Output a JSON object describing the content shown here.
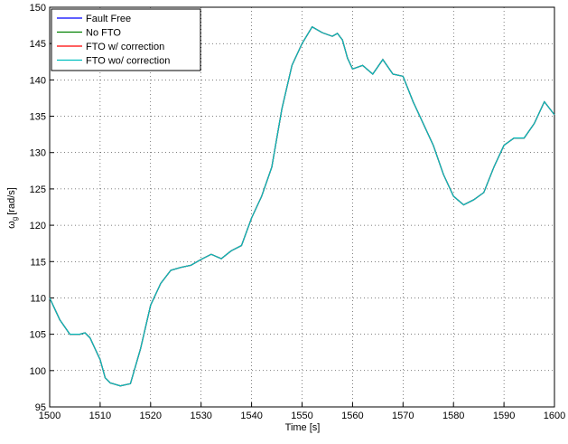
{
  "chart_data": {
    "type": "line",
    "xlabel": "Time [s]",
    "ylabel": {
      "symbol": "ω",
      "subscript": "g",
      "unit": "[rad/s]"
    },
    "x": [
      1500,
      1502,
      1504,
      1506,
      1507,
      1508,
      1510,
      1511,
      1512,
      1514,
      1516,
      1518,
      1520,
      1522,
      1524,
      1526,
      1528,
      1530,
      1532,
      1534,
      1536,
      1538,
      1540,
      1542,
      1544,
      1546,
      1548,
      1550,
      1552,
      1554,
      1556,
      1557,
      1558,
      1559,
      1560,
      1562,
      1564,
      1566,
      1568,
      1570,
      1572,
      1574,
      1576,
      1578,
      1580,
      1582,
      1584,
      1586,
      1588,
      1590,
      1592,
      1594,
      1596,
      1598,
      1600
    ],
    "series": [
      {
        "name": "Fault Free",
        "color": "#0000ff",
        "values": [
          110,
          107,
          105,
          105,
          105.2,
          104.5,
          101.5,
          99,
          98.3,
          97.9,
          98.2,
          103,
          109,
          112,
          113.8,
          114.2,
          114.5,
          115.3,
          116,
          115.4,
          116.5,
          117.2,
          121,
          124,
          128,
          136,
          142,
          145,
          147.3,
          146.5,
          146,
          146.4,
          145.5,
          143,
          141.5,
          142,
          140.8,
          142.8,
          140.8,
          140.5,
          137,
          134,
          131,
          127,
          124,
          122.8,
          123.5,
          124.5,
          128,
          131,
          132,
          132,
          134,
          137,
          135.2
        ]
      },
      {
        "name": "No FTO",
        "color": "#008000",
        "values": [
          110,
          107,
          105,
          105,
          105.2,
          104.5,
          101.5,
          99,
          98.3,
          97.9,
          98.2,
          103,
          109,
          112,
          113.8,
          114.2,
          114.5,
          115.3,
          116,
          115.4,
          116.5,
          117.2,
          121,
          124,
          128,
          136,
          142,
          145,
          147.3,
          146.5,
          146,
          146.4,
          145.5,
          143,
          141.5,
          142,
          140.8,
          142.8,
          140.8,
          140.5,
          137,
          134,
          131,
          127,
          124,
          122.8,
          123.5,
          124.5,
          128,
          131,
          132,
          132,
          134,
          137,
          135.2
        ]
      },
      {
        "name": "FTO w/ correction",
        "color": "#ff0000",
        "values": [
          110,
          107,
          105,
          105,
          105.2,
          104.5,
          101.5,
          99,
          98.3,
          97.9,
          98.2,
          103,
          109,
          112,
          113.8,
          114.2,
          114.5,
          115.3,
          116,
          115.4,
          116.5,
          117.2,
          121,
          124,
          128,
          136,
          142,
          145,
          147.3,
          146.5,
          146,
          146.4,
          145.5,
          143,
          141.5,
          142,
          140.8,
          142.8,
          140.8,
          140.5,
          137,
          134,
          131,
          127,
          124,
          122.8,
          123.5,
          124.5,
          128,
          131,
          132,
          132,
          134,
          137,
          135.2
        ]
      },
      {
        "name": "FTO wo/ correction",
        "color": "#00bfbf",
        "values": [
          110,
          107,
          105,
          105,
          105.2,
          104.5,
          101.5,
          99,
          98.3,
          97.9,
          98.2,
          103,
          109,
          112,
          113.8,
          114.2,
          114.5,
          115.3,
          116,
          115.4,
          116.5,
          117.2,
          121,
          124,
          128,
          136,
          142,
          145,
          147.3,
          146.5,
          146,
          146.4,
          145.5,
          143,
          141.5,
          142,
          140.8,
          142.8,
          140.8,
          140.5,
          137,
          134,
          131,
          127,
          124,
          122.8,
          123.5,
          124.5,
          128,
          131,
          132,
          132,
          134,
          137,
          135.2
        ]
      }
    ],
    "xlim": [
      1500,
      1600
    ],
    "xticks": [
      1500,
      1510,
      1520,
      1530,
      1540,
      1550,
      1560,
      1570,
      1580,
      1590,
      1600
    ],
    "ylim": [
      95,
      150
    ],
    "yticks": [
      95,
      100,
      105,
      110,
      115,
      120,
      125,
      130,
      135,
      140,
      145,
      150
    ],
    "grid": true,
    "legend": "upper-left"
  }
}
